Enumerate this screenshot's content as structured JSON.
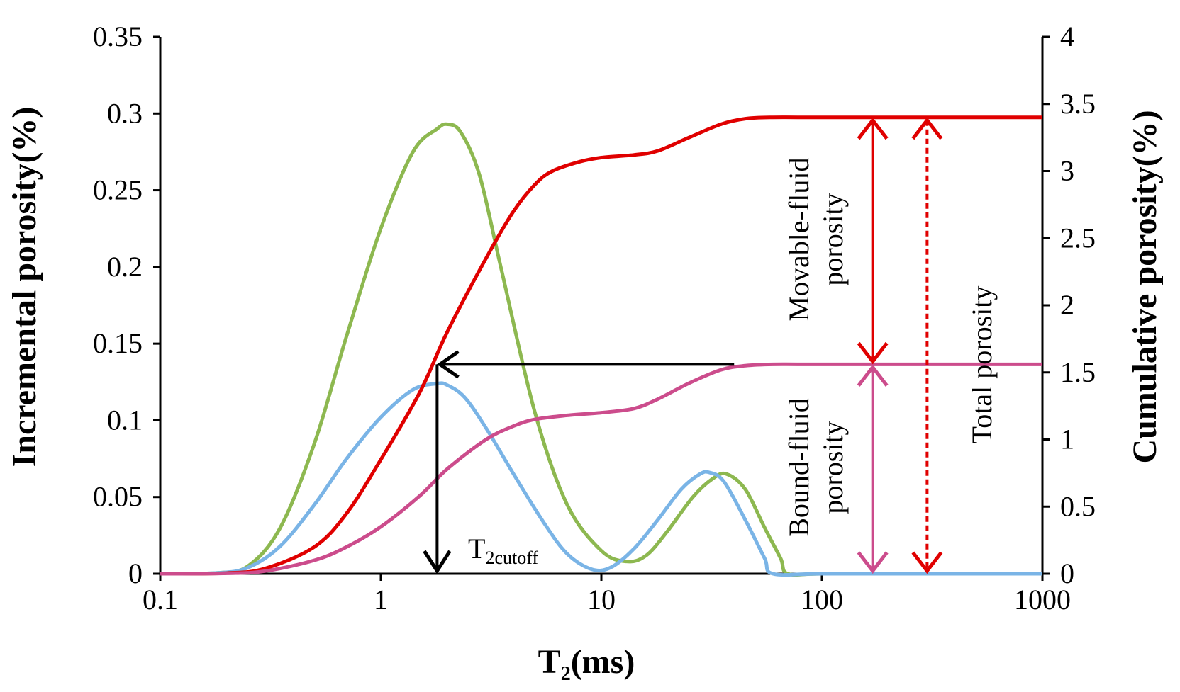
{
  "chart_data": {
    "type": "line",
    "x_scale": "log",
    "xlabel_main": "T",
    "xlabel_sub": "2",
    "xlabel_tail": "(ms)",
    "ylabel_left": "Incremental porosity(%)",
    "ylabel_right": "Cumulative porosity(%)",
    "xlim": [
      0.1,
      1000
    ],
    "ylim_left": [
      0,
      0.35
    ],
    "ylim_right": [
      0,
      4
    ],
    "x_ticks": [
      {
        "value": 0.1,
        "label": "0.1"
      },
      {
        "value": 1,
        "label": "1"
      },
      {
        "value": 10,
        "label": "10"
      },
      {
        "value": 100,
        "label": "100"
      },
      {
        "value": 1000,
        "label": "1000"
      }
    ],
    "y_left_ticks": [
      {
        "value": 0,
        "label": "0"
      },
      {
        "value": 0.05,
        "label": "0.05"
      },
      {
        "value": 0.1,
        "label": "0.1"
      },
      {
        "value": 0.15,
        "label": "0.15"
      },
      {
        "value": 0.2,
        "label": "0.2"
      },
      {
        "value": 0.25,
        "label": "0.25"
      },
      {
        "value": 0.3,
        "label": "0.3"
      },
      {
        "value": 0.35,
        "label": "0.35"
      }
    ],
    "y_right_ticks": [
      {
        "value": 0,
        "label": "0"
      },
      {
        "value": 0.5,
        "label": "0.5"
      },
      {
        "value": 1,
        "label": "1"
      },
      {
        "value": 1.5,
        "label": "1.5"
      },
      {
        "value": 2,
        "label": "2"
      },
      {
        "value": 2.5,
        "label": "2.5"
      },
      {
        "value": 3,
        "label": "3"
      },
      {
        "value": 3.5,
        "label": "3.5"
      },
      {
        "value": 4,
        "label": "4"
      }
    ],
    "series": [
      {
        "name": "Incremental porosity (green)",
        "axis": "left",
        "color": "#8db850",
        "x": [
          0.1,
          0.18,
          0.25,
          0.35,
          0.5,
          0.7,
          1.0,
          1.4,
          1.8,
          2.0,
          2.3,
          2.8,
          3.5,
          5.0,
          7.0,
          10.0,
          13.0,
          16.0,
          20.0,
          26.0,
          32.0,
          37.0,
          45.0,
          55.0,
          65.0,
          70.0,
          100.0,
          300.0,
          1000.0
        ],
        "y": [
          0,
          0.0005,
          0.005,
          0.03,
          0.085,
          0.155,
          0.225,
          0.275,
          0.29,
          0.293,
          0.288,
          0.26,
          0.2,
          0.105,
          0.045,
          0.015,
          0.008,
          0.012,
          0.028,
          0.05,
          0.062,
          0.065,
          0.055,
          0.03,
          0.01,
          0,
          0,
          0,
          0
        ]
      },
      {
        "name": "Incremental porosity (blue)",
        "axis": "left",
        "color": "#7ab4e6",
        "x": [
          0.1,
          0.18,
          0.25,
          0.35,
          0.5,
          0.7,
          1.0,
          1.4,
          1.8,
          2.0,
          2.4,
          3.0,
          4.0,
          5.5,
          7.0,
          9.0,
          11.0,
          14.0,
          18.0,
          23.0,
          28.0,
          31.0,
          36.0,
          45.0,
          55.0,
          60.0,
          100.0,
          300.0,
          1000.0
        ],
        "y": [
          0,
          0.0005,
          0.004,
          0.018,
          0.045,
          0.075,
          0.102,
          0.12,
          0.124,
          0.123,
          0.115,
          0.095,
          0.065,
          0.033,
          0.013,
          0.003,
          0.004,
          0.016,
          0.035,
          0.055,
          0.065,
          0.066,
          0.06,
          0.035,
          0.01,
          0,
          0,
          0,
          0
        ]
      },
      {
        "name": "Cumulative porosity (red)",
        "axis": "right",
        "color": "#e00000",
        "x": [
          0.1,
          0.2,
          0.3,
          0.5,
          0.7,
          1.0,
          1.5,
          2.0,
          3.0,
          4.0,
          5.0,
          6.0,
          8.0,
          10.0,
          14.0,
          18.0,
          25.0,
          35.0,
          45.0,
          60.0,
          100.0,
          1000.0
        ],
        "y": [
          0,
          0.005,
          0.04,
          0.2,
          0.45,
          0.85,
          1.35,
          1.8,
          2.35,
          2.7,
          2.9,
          3.0,
          3.07,
          3.1,
          3.12,
          3.15,
          3.25,
          3.35,
          3.39,
          3.4,
          3.4,
          3.4
        ]
      },
      {
        "name": "Cumulative porosity (magenta)",
        "axis": "right",
        "color": "#cc4c8c",
        "x": [
          0.1,
          0.2,
          0.3,
          0.5,
          0.7,
          1.0,
          1.5,
          2.0,
          3.0,
          4.0,
          5.0,
          7.0,
          10.0,
          14.0,
          18.0,
          25.0,
          35.0,
          45.0,
          60.0,
          100.0,
          1000.0
        ],
        "y": [
          0,
          0.003,
          0.02,
          0.1,
          0.2,
          0.35,
          0.58,
          0.78,
          1.0,
          1.1,
          1.15,
          1.18,
          1.2,
          1.23,
          1.3,
          1.42,
          1.52,
          1.55,
          1.56,
          1.56,
          1.56
        ]
      }
    ],
    "annotations": {
      "t2cutoff": {
        "x": 1.8,
        "label_main": "T",
        "label_sub": "2cutoff"
      },
      "cutoff_level": 1.56,
      "total_level": 3.4,
      "arrow_color": "#000000",
      "movable_arrow_x": 170,
      "bound_arrow_x": 170,
      "total_arrow_x": 300,
      "movable_color": "#e00000",
      "bound_color": "#cc4c8c",
      "total_color": "#e00000",
      "label_movable_line1": "Movable-fluid",
      "label_movable_line2": "porosity",
      "label_bound_line1": "Bound-fluid",
      "label_bound_line2": "porosity",
      "label_total": "Total porosity"
    }
  }
}
